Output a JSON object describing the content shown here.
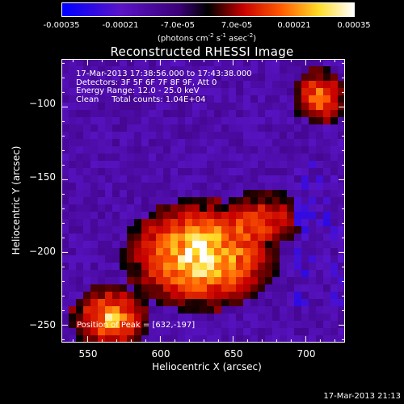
{
  "colorbar": {
    "tick_labels": [
      "-0.00035",
      "-0.00021",
      "-7.0e-05",
      "7.0e-05",
      "0.00021",
      "0.00035"
    ],
    "range": [
      -0.00035,
      0.00035
    ],
    "units_prefix": "(photons cm",
    "units_exp1": "-2",
    "units_mid": " s",
    "units_exp2": "-1",
    "units_mid2": " asec",
    "units_exp3": "-2",
    "units_suffix": ")"
  },
  "title": "Reconstructed RHESSI Image",
  "annotation": {
    "line1": "17-Mar-2013 17:38:56.000 to 17:43:38.000",
    "line2": "Detectors: 3F 5F 6F 7F 8F 9F, Att 0",
    "line3": "Energy Range: 12.0 - 25.0 keV",
    "line4": "Clean     Total counts: 1.04E+04"
  },
  "peak_label": "Position of Peak = [632,-197]",
  "chart_data": {
    "type": "heatmap",
    "xlabel": "Heliocentric X (arcsec)",
    "ylabel": "Heliocentric Y (arcsec)",
    "xlim": [
      532,
      727
    ],
    "ylim": [
      -262,
      -67
    ],
    "x_ticks": [
      550,
      600,
      650,
      700
    ],
    "y_ticks": [
      -100,
      -150,
      -200,
      -250
    ],
    "x_tick_labels": [
      "550",
      "600",
      "650",
      "700"
    ],
    "y_tick_labels": [
      "−100",
      "−150",
      "−200",
      "−250"
    ],
    "peak": [
      632,
      -197
    ]
  },
  "timestamp": "17-Mar-2013 21:13"
}
